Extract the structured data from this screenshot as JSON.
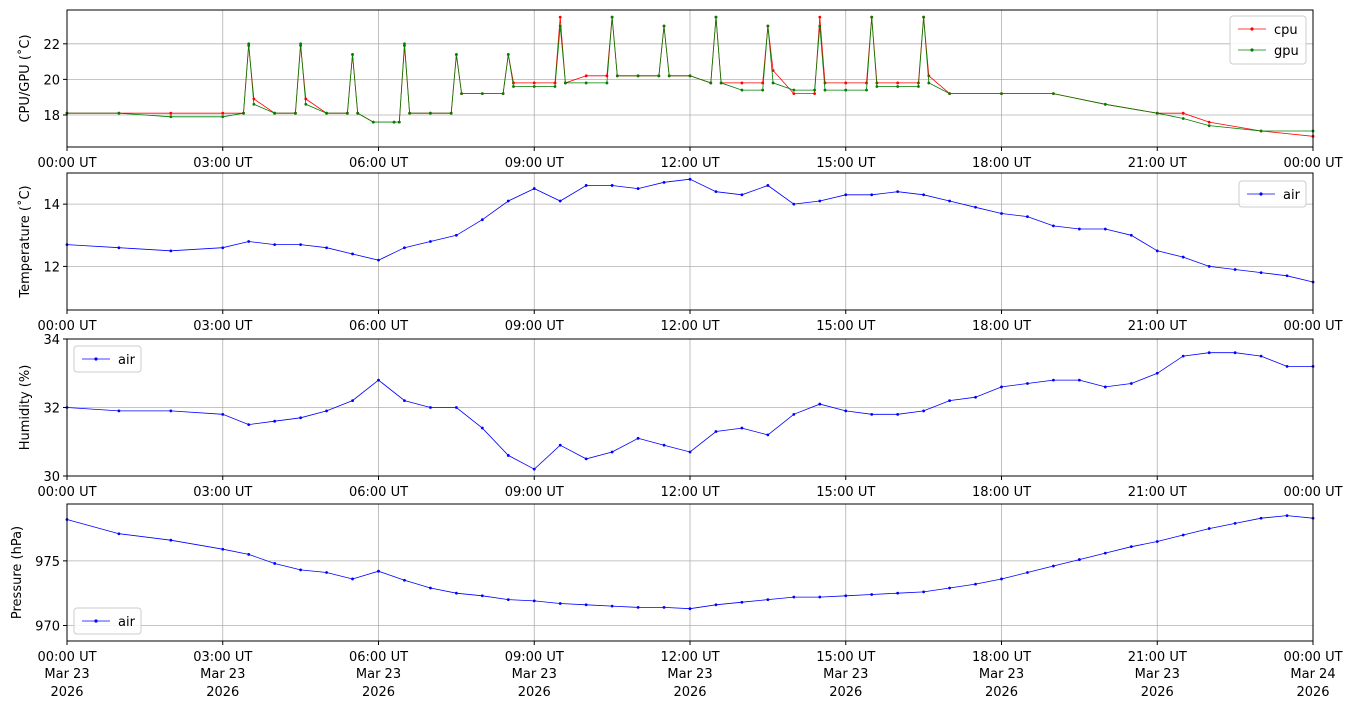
{
  "chart_data": [
    {
      "type": "line",
      "ylabel": "CPU/GPU (˚C)",
      "xlim": [
        "2026-03-23T00:00Z",
        "2026-03-24T00:00Z"
      ],
      "ylim": [
        16.2,
        23.9
      ],
      "yticks": [
        18,
        20,
        22
      ],
      "grid": true,
      "legend_position": "top-right",
      "series": [
        {
          "name": "cpu",
          "color": "#ff0000",
          "x_hours": [
            0,
            1,
            2,
            3,
            3.4,
            3.5,
            3.6,
            4,
            4.4,
            4.5,
            4.6,
            5,
            5.4,
            5.5,
            5.6,
            5.9,
            6.3,
            6.4,
            6.5,
            6.6,
            7,
            7.4,
            7.5,
            7.6,
            8,
            8.4,
            8.5,
            8.6,
            9,
            9.4,
            9.5,
            9.6,
            10,
            10.4,
            10.5,
            10.6,
            11,
            11.4,
            11.5,
            11.6,
            12,
            12.4,
            12.5,
            12.6,
            13,
            13.4,
            13.5,
            13.6,
            14,
            14.4,
            14.5,
            14.6,
            15,
            15.4,
            15.5,
            15.6,
            16,
            16.4,
            16.5,
            16.6,
            17,
            18,
            19,
            20,
            21,
            21.5,
            22,
            23,
            24
          ],
          "values": [
            18.1,
            18.1,
            18.1,
            18.1,
            18.1,
            21.9,
            18.9,
            18.1,
            18.1,
            21.9,
            18.9,
            18.1,
            18.1,
            21.4,
            18.1,
            17.6,
            17.6,
            17.6,
            21.9,
            18.1,
            18.1,
            18.1,
            21.4,
            19.2,
            19.2,
            19.2,
            21.4,
            19.8,
            19.8,
            19.8,
            23.5,
            19.8,
            20.2,
            20.2,
            23.5,
            20.2,
            20.2,
            20.2,
            23.0,
            20.2,
            20.2,
            19.8,
            23.5,
            19.8,
            19.8,
            19.8,
            23.0,
            20.5,
            19.2,
            19.2,
            23.5,
            19.8,
            19.8,
            19.8,
            23.5,
            19.8,
            19.8,
            19.8,
            23.5,
            20.2,
            19.2,
            19.2,
            19.2,
            18.6,
            18.1,
            18.1,
            17.6,
            17.1,
            16.8
          ]
        },
        {
          "name": "gpu",
          "color": "#008000",
          "x_hours": [
            0,
            1,
            2,
            3,
            3.4,
            3.5,
            3.6,
            4,
            4.4,
            4.5,
            4.6,
            5,
            5.4,
            5.5,
            5.6,
            5.9,
            6.3,
            6.4,
            6.5,
            6.6,
            7,
            7.4,
            7.5,
            7.6,
            8,
            8.4,
            8.5,
            8.6,
            9,
            9.4,
            9.5,
            9.6,
            10,
            10.4,
            10.5,
            10.6,
            11,
            11.4,
            11.5,
            11.6,
            12,
            12.4,
            12.5,
            12.6,
            13,
            13.4,
            13.5,
            13.6,
            14,
            14.4,
            14.5,
            14.6,
            15,
            15.4,
            15.5,
            15.6,
            16,
            16.4,
            16.5,
            16.6,
            17,
            18,
            19,
            20,
            21,
            21.5,
            22,
            23,
            24
          ],
          "values": [
            18.1,
            18.1,
            17.9,
            17.9,
            18.1,
            22.0,
            18.6,
            18.1,
            18.1,
            22.0,
            18.6,
            18.1,
            18.1,
            21.4,
            18.1,
            17.6,
            17.6,
            17.6,
            22.0,
            18.1,
            18.1,
            18.1,
            21.4,
            19.2,
            19.2,
            19.2,
            21.4,
            19.6,
            19.6,
            19.6,
            23.0,
            19.8,
            19.8,
            19.8,
            23.5,
            20.2,
            20.2,
            20.2,
            23.0,
            20.2,
            20.2,
            19.8,
            23.5,
            19.8,
            19.4,
            19.4,
            23.0,
            19.8,
            19.4,
            19.4,
            23.0,
            19.4,
            19.4,
            19.4,
            23.5,
            19.6,
            19.6,
            19.6,
            23.5,
            19.8,
            19.2,
            19.2,
            19.2,
            18.6,
            18.1,
            17.8,
            17.4,
            17.1,
            17.1
          ]
        }
      ]
    },
    {
      "type": "line",
      "ylabel": "Temperature (˚C)",
      "xlim": [
        "2026-03-23T00:00Z",
        "2026-03-24T00:00Z"
      ],
      "ylim": [
        10.6,
        15.0
      ],
      "yticks": [
        12,
        14
      ],
      "grid": true,
      "legend_position": "top-right",
      "series": [
        {
          "name": "air",
          "color": "#0000ff",
          "x_hours": [
            0,
            1,
            2,
            3,
            3.5,
            4,
            4.5,
            5,
            5.5,
            6,
            6.5,
            7,
            7.5,
            8,
            8.5,
            9,
            9.5,
            10,
            10.5,
            11,
            11.5,
            12,
            12.5,
            13,
            13.5,
            14,
            14.5,
            15,
            15.5,
            16,
            16.5,
            17,
            17.5,
            18,
            18.5,
            19,
            19.5,
            20,
            20.5,
            21,
            21.5,
            22,
            22.5,
            23,
            23.5,
            24
          ],
          "values": [
            12.7,
            12.6,
            12.5,
            12.6,
            12.8,
            12.7,
            12.7,
            12.6,
            12.4,
            12.2,
            12.6,
            12.8,
            13.0,
            13.5,
            14.1,
            14.5,
            14.1,
            14.6,
            14.6,
            14.5,
            14.7,
            14.8,
            14.4,
            14.3,
            14.6,
            14.0,
            14.1,
            14.3,
            14.3,
            14.4,
            14.3,
            14.1,
            13.9,
            13.7,
            13.6,
            13.3,
            13.2,
            13.2,
            13.0,
            12.5,
            12.3,
            12.0,
            11.9,
            11.8,
            11.7,
            11.5
          ]
        }
      ]
    },
    {
      "type": "line",
      "ylabel": "Humidity (%)",
      "xlim": [
        "2026-03-23T00:00Z",
        "2026-03-24T00:00Z"
      ],
      "ylim": [
        30,
        34
      ],
      "yticks": [
        30,
        32,
        34
      ],
      "grid": true,
      "legend_position": "top-left",
      "series": [
        {
          "name": "air",
          "color": "#0000ff",
          "x_hours": [
            0,
            1,
            2,
            3,
            3.5,
            4,
            4.5,
            5,
            5.5,
            6,
            6.5,
            7,
            7.5,
            8,
            8.5,
            9,
            9.5,
            10,
            10.5,
            11,
            11.5,
            12,
            12.5,
            13,
            13.5,
            14,
            14.5,
            15,
            15.5,
            16,
            16.5,
            17,
            17.5,
            18,
            18.5,
            19,
            19.5,
            20,
            20.5,
            21,
            21.5,
            22,
            22.5,
            23,
            23.5,
            24
          ],
          "values": [
            32.0,
            31.9,
            31.9,
            31.8,
            31.5,
            31.6,
            31.7,
            31.9,
            32.2,
            32.8,
            32.2,
            32.0,
            32.0,
            31.4,
            30.6,
            30.2,
            30.9,
            30.5,
            30.7,
            31.1,
            30.9,
            30.7,
            31.3,
            31.4,
            31.2,
            31.8,
            32.1,
            31.9,
            31.8,
            31.8,
            31.9,
            32.2,
            32.3,
            32.6,
            32.7,
            32.8,
            32.8,
            32.6,
            32.7,
            33.0,
            33.5,
            33.6,
            33.6,
            33.5,
            33.2,
            33.2
          ]
        }
      ]
    },
    {
      "type": "line",
      "ylabel": "Pressure (hPa)",
      "xlim": [
        "2026-03-23T00:00Z",
        "2026-03-24T00:00Z"
      ],
      "ylim": [
        968.8,
        979.4
      ],
      "yticks": [
        970,
        975
      ],
      "grid": true,
      "legend_position": "bottom-left",
      "series": [
        {
          "name": "air",
          "color": "#0000ff",
          "x_hours": [
            0,
            1,
            2,
            3,
            3.5,
            4,
            4.5,
            5,
            5.5,
            6,
            6.5,
            7,
            7.5,
            8,
            8.5,
            9,
            9.5,
            10,
            10.5,
            11,
            11.5,
            12,
            12.5,
            13,
            13.5,
            14,
            14.5,
            15,
            15.5,
            16,
            16.5,
            17,
            17.5,
            18,
            18.5,
            19,
            19.5,
            20,
            20.5,
            21,
            21.5,
            22,
            22.5,
            23,
            23.5,
            24
          ],
          "values": [
            978.2,
            977.1,
            976.6,
            975.9,
            975.5,
            974.8,
            974.3,
            974.1,
            973.6,
            974.2,
            973.5,
            972.9,
            972.5,
            972.3,
            972.0,
            971.9,
            971.7,
            971.6,
            971.5,
            971.4,
            971.4,
            971.3,
            971.6,
            971.8,
            972.0,
            972.2,
            972.2,
            972.3,
            972.4,
            972.5,
            972.6,
            972.9,
            973.2,
            973.6,
            974.1,
            974.6,
            975.1,
            975.6,
            976.1,
            976.5,
            977.0,
            977.5,
            977.9,
            978.3,
            978.5,
            978.3
          ]
        }
      ]
    }
  ],
  "x_ticks": {
    "time_labels": [
      "00:00 UT",
      "03:00 UT",
      "06:00 UT",
      "09:00 UT",
      "12:00 UT",
      "15:00 UT",
      "18:00 UT",
      "21:00 UT",
      "00:00 UT"
    ],
    "date_labels": [
      "Mar 23",
      "Mar 23",
      "Mar 23",
      "Mar 23",
      "Mar 23",
      "Mar 23",
      "Mar 23",
      "Mar 23",
      "Mar 24"
    ],
    "year_labels": [
      "2026",
      "2026",
      "2026",
      "2026",
      "2026",
      "2026",
      "2026",
      "2026",
      "2026"
    ]
  }
}
